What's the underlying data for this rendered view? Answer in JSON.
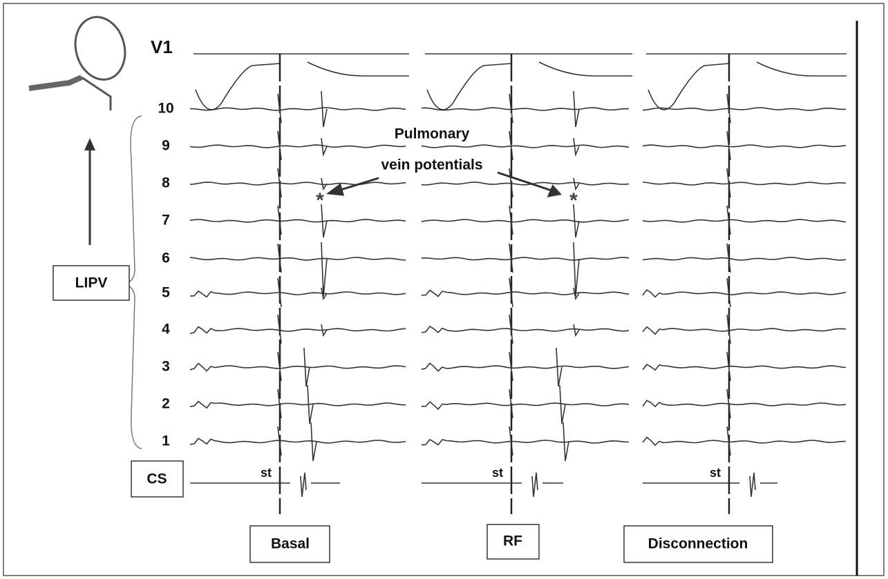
{
  "labels": {
    "lead": "V1",
    "channels": [
      "10",
      "9",
      "8",
      "7",
      "6",
      "5",
      "4",
      "3",
      "2",
      "1"
    ],
    "lipv": "LIPV",
    "cs": "CS"
  },
  "annotation": {
    "line1": "Pulmonary",
    "line2": "vein potentials",
    "markers": [
      "*",
      "*"
    ]
  },
  "stim_labels": [
    "st",
    "st",
    "st"
  ],
  "panels": [
    "Basal",
    "RF",
    "Disconnection"
  ]
}
